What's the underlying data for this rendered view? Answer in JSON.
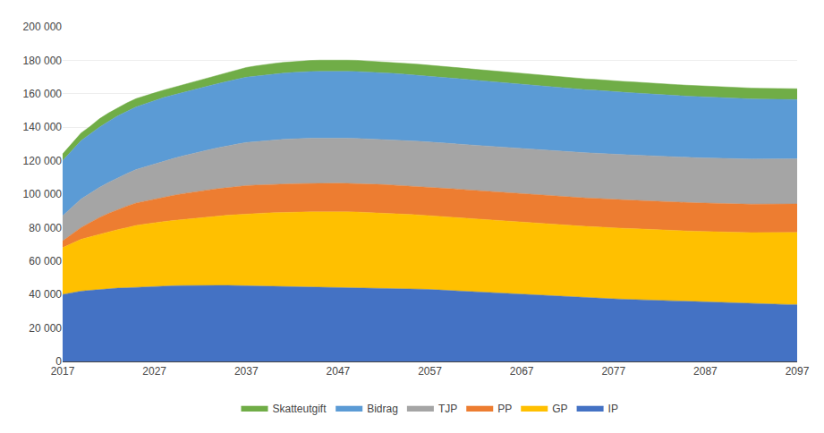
{
  "chart_data": {
    "type": "area",
    "stacked": true,
    "x": [
      2017,
      2018,
      2019,
      2020,
      2021,
      2022,
      2023,
      2024,
      2025,
      2026,
      2027,
      2028,
      2029,
      2030,
      2031,
      2032,
      2033,
      2034,
      2035,
      2036,
      2037,
      2038,
      2039,
      2040,
      2041,
      2042,
      2043,
      2044,
      2045,
      2046,
      2047,
      2048,
      2049,
      2050,
      2051,
      2052,
      2053,
      2054,
      2055,
      2056,
      2057,
      2058,
      2059,
      2060,
      2061,
      2062,
      2063,
      2064,
      2065,
      2066,
      2067,
      2068,
      2069,
      2070,
      2071,
      2072,
      2073,
      2074,
      2075,
      2076,
      2077,
      2078,
      2079,
      2080,
      2081,
      2082,
      2083,
      2084,
      2085,
      2086,
      2087,
      2088,
      2089,
      2090,
      2091,
      2092,
      2093,
      2094,
      2095,
      2096,
      2097
    ],
    "series": [
      {
        "name": "IP",
        "color": "#4472C4",
        "values": [
          40000,
          41000,
          42000,
          42500,
          43000,
          43500,
          43800,
          44000,
          44300,
          44600,
          45000,
          45100,
          45200,
          45300,
          45400,
          45400,
          45400,
          45400,
          45400,
          45300,
          45300,
          45200,
          45100,
          45000,
          44900,
          44800,
          44700,
          44600,
          44500,
          44500,
          44500,
          44400,
          44300,
          44200,
          44100,
          44000,
          43800,
          43600,
          43400,
          43200,
          43000,
          42700,
          42400,
          42100,
          41800,
          41500,
          41200,
          40900,
          40600,
          40300,
          40000,
          39700,
          39400,
          39100,
          38800,
          38500,
          38300,
          38100,
          37900,
          37600,
          37400,
          37200,
          37000,
          36800,
          36600,
          36400,
          36200,
          36000,
          35800,
          35600,
          35400,
          35200,
          35000,
          34800,
          34600,
          34400,
          34300,
          34200,
          34100,
          34000,
          34000
        ]
      },
      {
        "name": "GP",
        "color": "#FFC000",
        "values": [
          28000,
          29500,
          31000,
          32000,
          33000,
          34000,
          35000,
          36000,
          37000,
          37500,
          38000,
          38500,
          39000,
          39500,
          40000,
          40500,
          41000,
          41500,
          42000,
          42500,
          43000,
          43300,
          43600,
          43900,
          44200,
          44400,
          44600,
          44800,
          44900,
          45000,
          45000,
          45000,
          45000,
          44900,
          44800,
          44700,
          44600,
          44500,
          44400,
          44300,
          44200,
          44100,
          44000,
          43900,
          43800,
          43700,
          43600,
          43500,
          43400,
          43300,
          43200,
          43100,
          43000,
          42900,
          42800,
          42800,
          42700,
          42600,
          42600,
          42500,
          42500,
          42400,
          42400,
          42300,
          42300,
          42200,
          42200,
          42200,
          42200,
          42200,
          42200,
          42300,
          42300,
          42400,
          42500,
          42600,
          42700,
          42800,
          42900,
          43000,
          43100
        ]
      },
      {
        "name": "PP",
        "color": "#ED7D31",
        "values": [
          4000,
          5500,
          7000,
          8500,
          10000,
          11000,
          12000,
          12800,
          13400,
          13800,
          14200,
          14600,
          15000,
          15400,
          15700,
          16000,
          16200,
          16400,
          16600,
          16700,
          16800,
          16900,
          17000,
          17000,
          17000,
          17000,
          17000,
          17000,
          17000,
          17000,
          17000,
          17000,
          17000,
          17000,
          17000,
          17000,
          17000,
          17000,
          17000,
          17000,
          17000,
          17000,
          17000,
          17000,
          17000,
          17000,
          17000,
          17000,
          17000,
          17000,
          17000,
          17000,
          17000,
          17000,
          17000,
          17000,
          17000,
          17000,
          17000,
          17000,
          17000,
          17000,
          17000,
          17000,
          17000,
          17000,
          17000,
          17000,
          17000,
          17000,
          17000,
          17000,
          17000,
          17000,
          17000,
          17000,
          17000,
          17000,
          17000,
          17000,
          17000
        ]
      },
      {
        "name": "TJP",
        "color": "#A5A5A5",
        "values": [
          15000,
          16000,
          17000,
          17500,
          18000,
          18500,
          19000,
          19500,
          20000,
          20500,
          21000,
          21500,
          22000,
          22500,
          23000,
          23500,
          24000,
          24500,
          25000,
          25400,
          25800,
          26000,
          26200,
          26400,
          26600,
          26800,
          27000,
          27000,
          27000,
          27000,
          27000,
          27000,
          27000,
          27000,
          27000,
          27000,
          27000,
          27000,
          27000,
          27000,
          27000,
          27000,
          27000,
          27000,
          27000,
          27000,
          27000,
          27000,
          27000,
          27000,
          27000,
          27000,
          27000,
          27000,
          27000,
          27000,
          27000,
          27000,
          27000,
          27000,
          27000,
          27000,
          27000,
          27000,
          27000,
          27000,
          27000,
          27000,
          27000,
          27000,
          27000,
          27000,
          27000,
          27000,
          27000,
          27000,
          27000,
          27000,
          27000,
          27000,
          27000
        ]
      },
      {
        "name": "Bidrag",
        "color": "#5B9BD5",
        "values": [
          33000,
          34000,
          35000,
          35500,
          36000,
          36500,
          37000,
          37200,
          37400,
          37600,
          37800,
          38000,
          38000,
          38000,
          38000,
          38000,
          38200,
          38400,
          38600,
          38800,
          39000,
          39200,
          39400,
          39500,
          39600,
          39700,
          39800,
          39900,
          40000,
          40000,
          40000,
          40000,
          40000,
          40000,
          40000,
          39900,
          39800,
          39700,
          39600,
          39500,
          39400,
          39300,
          39200,
          39100,
          39000,
          38900,
          38800,
          38700,
          38600,
          38500,
          38400,
          38300,
          38200,
          38100,
          38000,
          37900,
          37800,
          37700,
          37600,
          37500,
          37400,
          37300,
          37200,
          37100,
          37000,
          36900,
          36800,
          36700,
          36600,
          36500,
          36400,
          36300,
          36200,
          36100,
          36000,
          35900,
          35800,
          35700,
          35600,
          35500,
          35400
        ]
      },
      {
        "name": "Skatteutgift",
        "color": "#70AD47",
        "values": [
          4000,
          4000,
          4500,
          4500,
          5000,
          5000,
          4800,
          5000,
          5000,
          5000,
          4500,
          4500,
          4500,
          4500,
          4500,
          4700,
          5000,
          5200,
          5400,
          5600,
          5800,
          6000,
          6200,
          6300,
          6400,
          6500,
          6500,
          6600,
          6700,
          6700,
          6700,
          6700,
          6700,
          6600,
          6600,
          6500,
          6500,
          6500,
          6500,
          6500,
          6500,
          6500,
          6500,
          6500,
          6500,
          6500,
          6500,
          6500,
          6500,
          6500,
          6500,
          6500,
          6500,
          6500,
          6500,
          6500,
          6500,
          6500,
          6500,
          6500,
          6500,
          6500,
          6500,
          6500,
          6500,
          6500,
          6500,
          6500,
          6500,
          6500,
          6500,
          6500,
          6500,
          6500,
          6500,
          6500,
          6500,
          6500,
          6500,
          6500,
          6500
        ]
      }
    ],
    "xlim": [
      2017,
      2097
    ],
    "xticks": [
      2017,
      2027,
      2037,
      2047,
      2057,
      2067,
      2077,
      2087,
      2097
    ],
    "ylim": [
      0,
      200000
    ],
    "yticks": [
      0,
      {
        "value": 20000,
        "label": "20 000"
      },
      {
        "value": 40000,
        "label": "40 000"
      },
      {
        "value": 60000,
        "label": "60 000"
      },
      {
        "value": 80000,
        "label": "80 000"
      },
      {
        "value": 100000,
        "label": "100 000"
      },
      {
        "value": 120000,
        "label": "120 000"
      },
      {
        "value": 140000,
        "label": "140 000"
      },
      {
        "value": 160000,
        "label": "160 000"
      },
      {
        "value": 180000,
        "label": "180 000"
      },
      {
        "value": 200000,
        "label": "200 000"
      }
    ],
    "grid": true,
    "legend": "bottom"
  }
}
